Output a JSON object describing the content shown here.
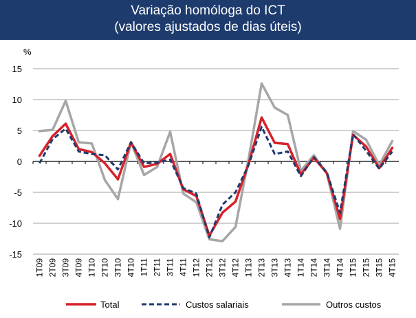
{
  "chart_data": {
    "type": "line",
    "title": "Variação homóloga do ICT",
    "subtitle": "(valores ajustados de dias úteis)",
    "ylabel": "%",
    "xlabel": "",
    "ylim": [
      -15,
      15
    ],
    "yticks": [
      15,
      10,
      5,
      0,
      -5,
      -10,
      -15
    ],
    "grid": true,
    "legend_position": "bottom",
    "categories": [
      "1T09",
      "2T09",
      "3T09",
      "4T09",
      "1T10",
      "2T10",
      "3T10",
      "4T10",
      "1T11",
      "2T11",
      "3T11",
      "4T11",
      "1T12",
      "2T12",
      "3T12",
      "4T12",
      "1T13",
      "2T13",
      "3T13",
      "4T13",
      "1T14",
      "2T14",
      "3T14",
      "4T14",
      "1T15",
      "2T15",
      "3T15",
      "4T15"
    ],
    "series": [
      {
        "name": "Outros custos",
        "style": "solid",
        "color": "#a6a6a6",
        "values": [
          4.9,
          5.1,
          9.8,
          3.1,
          2.9,
          -3.0,
          -6.1,
          3.1,
          -2.2,
          -0.9,
          4.8,
          -5.2,
          -6.6,
          -12.6,
          -12.9,
          -10.6,
          0.4,
          12.6,
          8.7,
          7.5,
          -1.5,
          1.0,
          -2.0,
          -10.9,
          4.9,
          3.5,
          -0.6,
          3.3
        ]
      },
      {
        "name": "Total",
        "style": "solid",
        "color": "#d7212a",
        "values": [
          0.9,
          4.1,
          6.1,
          2.0,
          1.5,
          -0.3,
          -2.9,
          3.1,
          -0.9,
          -0.4,
          1.2,
          -4.5,
          -5.6,
          -12.0,
          -8.3,
          -6.5,
          -0.4,
          7.1,
          3.0,
          2.8,
          -2.1,
          0.6,
          -1.9,
          -9.3,
          4.3,
          2.4,
          -1.1,
          2.2
        ]
      },
      {
        "name": "Custos salariais",
        "style": "dashed",
        "color": "#1e3b6e",
        "values": [
          -0.3,
          3.6,
          5.3,
          1.6,
          1.2,
          1.0,
          -1.3,
          3.1,
          -0.3,
          -0.2,
          0.3,
          -4.3,
          -5.2,
          -12.3,
          -7.0,
          -5.0,
          -0.6,
          5.6,
          1.2,
          1.6,
          -2.4,
          0.7,
          -1.8,
          -8.3,
          4.4,
          1.7,
          -1.2,
          1.6
        ]
      }
    ],
    "legend": [
      {
        "label": "Total",
        "color": "#d7212a",
        "style": "solid"
      },
      {
        "label": "Custos salariais",
        "color": "#1e3b6e",
        "style": "dashed"
      },
      {
        "label": "Outros custos",
        "color": "#a6a6a6",
        "style": "solid"
      }
    ]
  }
}
